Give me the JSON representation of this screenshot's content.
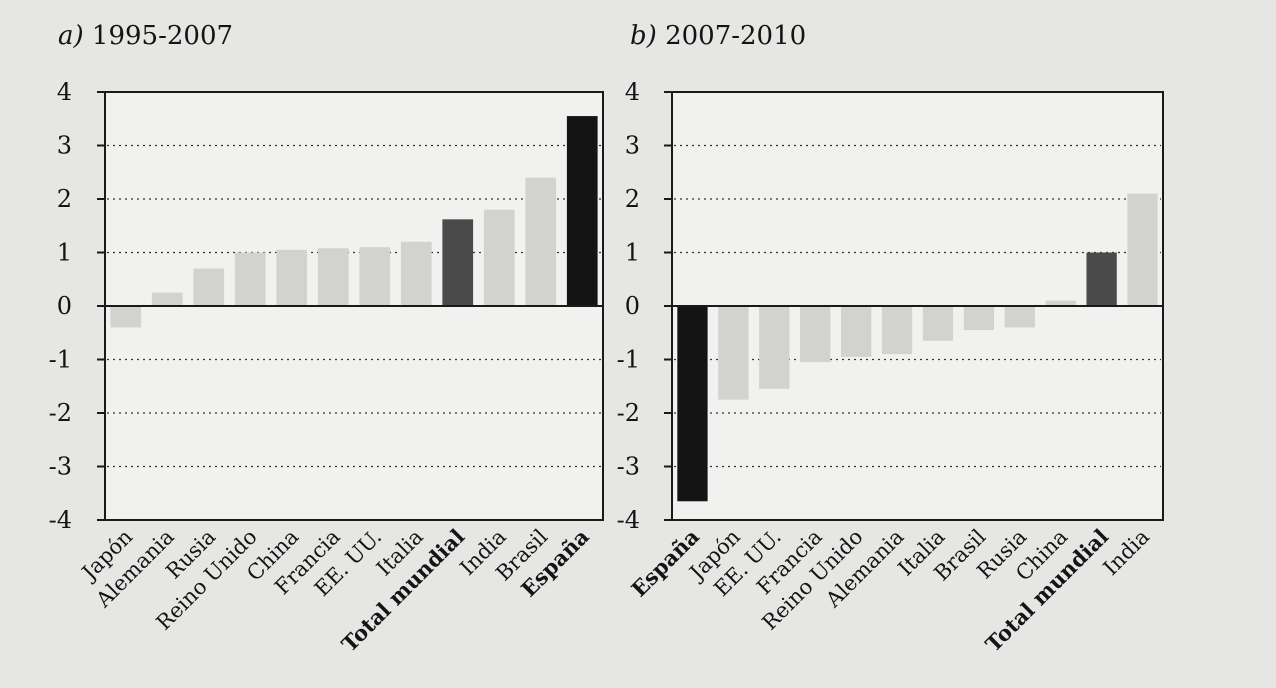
{
  "chart_data": [
    {
      "type": "bar",
      "title_letter": "a)",
      "title": "1995-2007",
      "ylim": [
        -4,
        4
      ],
      "yticks": [
        "4",
        "3",
        "2",
        "1",
        "0",
        "-1",
        "-2",
        "-3",
        "-4"
      ],
      "grid": "dotted horizontal",
      "categories": [
        "Japón",
        "Alemania",
        "Rusia",
        "Reino Unido",
        "China",
        "Francia",
        "EE. UU.",
        "Italia",
        "Total mundial",
        "India",
        "Brasil",
        "España"
      ],
      "values": [
        -0.4,
        0.25,
        0.7,
        1.0,
        1.05,
        1.08,
        1.1,
        1.2,
        1.62,
        1.8,
        2.4,
        3.55
      ],
      "emphasis": [
        "light",
        "light",
        "light",
        "light",
        "light",
        "light",
        "light",
        "light",
        "medium",
        "light",
        "light",
        "dark"
      ],
      "bold_labels": [
        "Total mundial",
        "España"
      ]
    },
    {
      "type": "bar",
      "title_letter": "b)",
      "title": "2007-2010",
      "ylim": [
        -4,
        4
      ],
      "yticks": [
        "4",
        "3",
        "2",
        "1",
        "0",
        "-1",
        "-2",
        "-3",
        "-4"
      ],
      "grid": "dotted horizontal",
      "categories": [
        "España",
        "Japón",
        "EE. UU.",
        "Francia",
        "Reino Unido",
        "Alemania",
        "Italia",
        "Brasil",
        "Rusia",
        "China",
        "Total mundial",
        "India"
      ],
      "values": [
        -3.65,
        -1.75,
        -1.55,
        -1.05,
        -0.95,
        -0.9,
        -0.65,
        -0.45,
        -0.4,
        0.1,
        1.0,
        2.1
      ],
      "emphasis": [
        "dark",
        "light",
        "light",
        "light",
        "light",
        "light",
        "light",
        "light",
        "light",
        "light",
        "medium",
        "light"
      ],
      "bold_labels": [
        "España",
        "Total mundial"
      ]
    }
  ],
  "colors": {
    "light": "#d2d2d0",
    "medium": "#4a4a4a",
    "dark": "#141414"
  }
}
